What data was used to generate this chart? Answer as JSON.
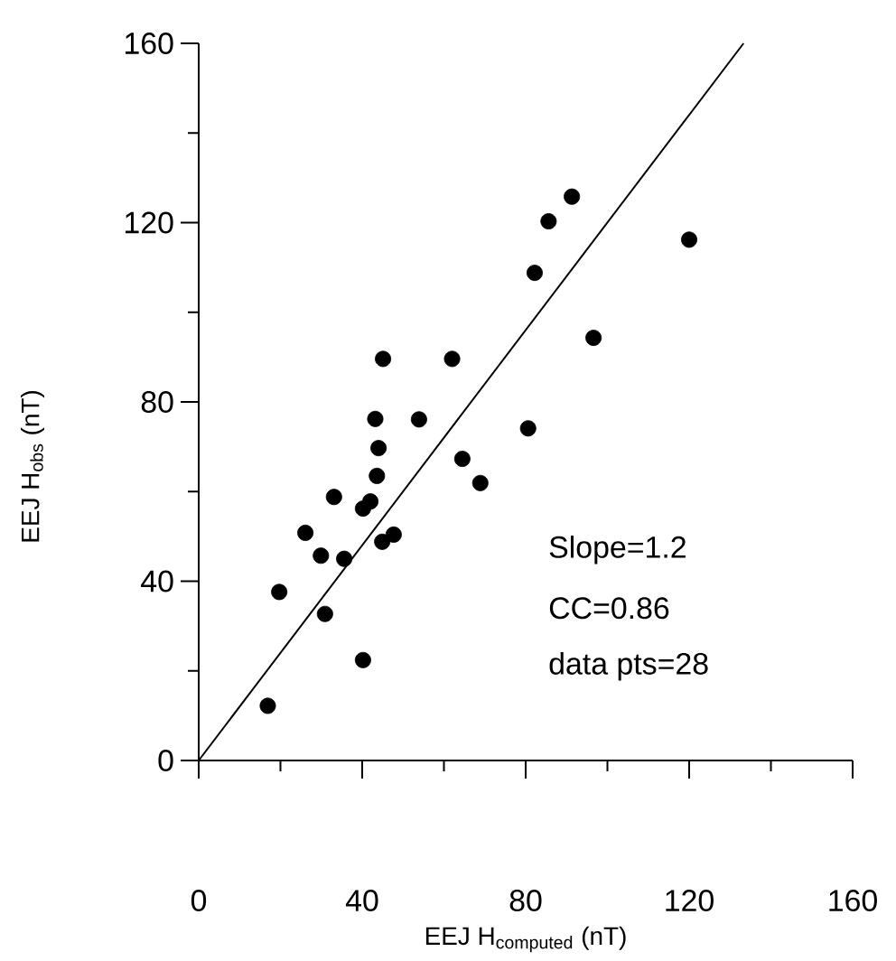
{
  "chart_data": {
    "type": "scatter",
    "xlabel": "EEJ H$_{computed}$ (nT)",
    "ylabel": "EEJ H$_{obs}$ (nT)",
    "xlim": [
      0,
      160
    ],
    "ylim": [
      0,
      160
    ],
    "xticks": [
      0,
      {
        "value": 20,
        "label": null
      },
      40,
      {
        "value": 60,
        "label": null
      },
      80,
      {
        "value": 100,
        "label": null
      },
      120,
      {
        "value": 140,
        "label": null
      },
      160
    ],
    "yticks": [
      0,
      {
        "value": 20,
        "label": null
      },
      40,
      {
        "value": 60,
        "label": null
      },
      80,
      {
        "value": 100,
        "label": null
      },
      120,
      {
        "value": 140,
        "label": null
      },
      160
    ],
    "annotations": [
      "Slope=1.2",
      "CC=0.86",
      "data pts=28"
    ],
    "series": [
      {
        "color": "#000000",
        "marker": "circle",
        "x": [
          16.9,
          19.7,
          26.1,
          29.9,
          30.9,
          33.1,
          35.6,
          40.2,
          40.2,
          42.0,
          43.6,
          44.0,
          43.2,
          45.1,
          44.9,
          47.7,
          53.9,
          62.0,
          64.5,
          68.9,
          80.6,
          82.2,
          85.6,
          91.3,
          96.6,
          120.0
        ],
        "values": [
          12.2,
          37.6,
          50.8,
          45.7,
          32.7,
          58.8,
          45.0,
          22.4,
          56.2,
          57.8,
          63.5,
          69.7,
          76.2,
          89.6,
          48.8,
          50.4,
          76.1,
          89.6,
          67.3,
          61.9,
          74.1,
          108.8,
          120.3,
          125.8,
          94.3,
          116.2
        ]
      },
      {
        "type": "line",
        "color": "#000000",
        "marker": "none",
        "line_style": "solid",
        "x": [
          0,
          133.3
        ],
        "values": [
          0,
          160
        ]
      }
    ]
  }
}
